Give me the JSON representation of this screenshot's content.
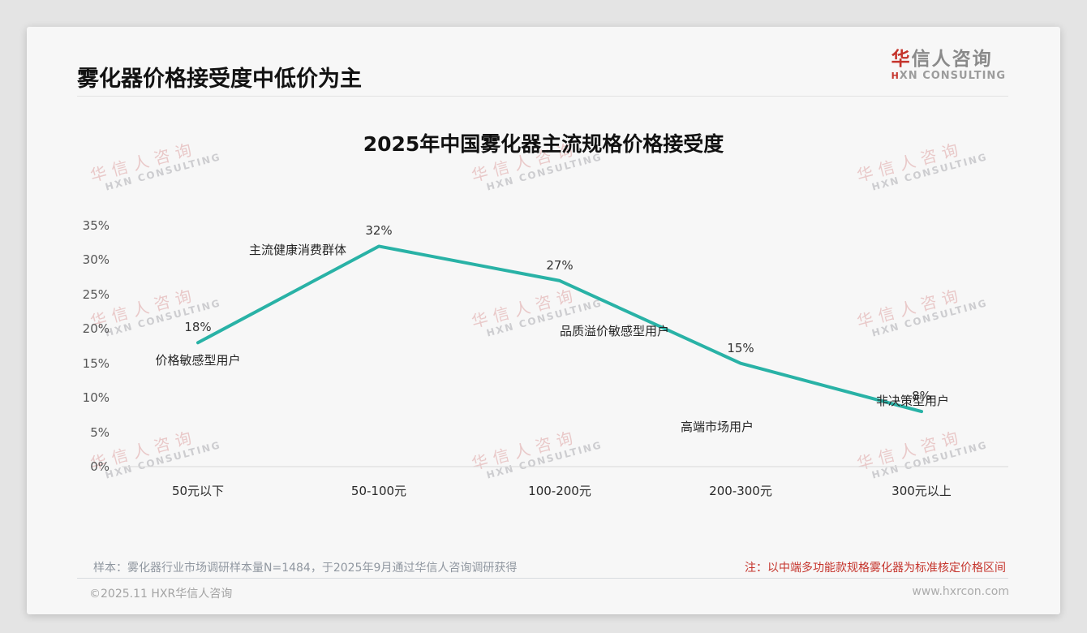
{
  "header": {
    "title": "雾化器价格接受度中低价为主",
    "logo": {
      "cn_accent": "华",
      "cn_rest": "信人咨询",
      "en_accent": "H",
      "en_rest": "XN CONSULTING"
    }
  },
  "chart_data": {
    "type": "line",
    "title": "2025年中国雾化器主流规格价格接受度",
    "categories": [
      "50元以下",
      "50-100元",
      "100-200元",
      "200-300元",
      "300元以上"
    ],
    "values": [
      18,
      32,
      27,
      15,
      8
    ],
    "point_labels": [
      "18%",
      "32%",
      "27%",
      "15%",
      "8%"
    ],
    "annotations": [
      "价格敏感型用户",
      "主流健康消费群体",
      "品质溢价敏感型用户",
      "高端市场用户",
      "非决策型用户"
    ],
    "y_ticks": [
      "35%",
      "30%",
      "25%",
      "20%",
      "15%",
      "10%",
      "5%",
      "0%"
    ],
    "y_tick_values": [
      35,
      30,
      25,
      20,
      15,
      10,
      5,
      0
    ],
    "ylim": [
      0,
      35
    ],
    "xlabel": "",
    "ylabel": "",
    "grid": false,
    "legend_position": "none",
    "line_color": "#29b2a6",
    "axis_color": "#d9d9d9"
  },
  "watermark": {
    "cn": "华信人咨询",
    "en": "HXN CONSULTING"
  },
  "footer": {
    "sample_note": "样本：雾化器行业市场调研样本量N=1484，于2025年9月通过华信人咨询调研获得",
    "price_note": "注：以中端多功能款规格雾化器为标准核定价格区间",
    "copyright": "©2025.11 HXR华信人咨询",
    "website": "www.hxrcon.com"
  },
  "colors": {
    "accent_red": "#c5342c",
    "line_teal": "#29b2a6",
    "card_bg": "#f7f7f7",
    "page_bg": "#e4e4e4"
  }
}
